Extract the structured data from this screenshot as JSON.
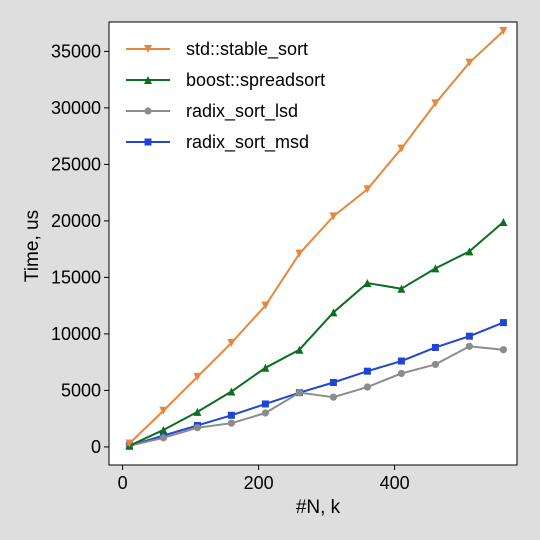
{
  "chart_data": {
    "type": "line",
    "title": "",
    "xlabel": "#N, k",
    "ylabel": "Time, us",
    "xlim": [
      -20,
      580
    ],
    "ylim": [
      -1600,
      37600
    ],
    "xticks": [
      0,
      200,
      400
    ],
    "xtick_labels": [
      "0",
      "200",
      "400"
    ],
    "yticks": [
      0,
      5000,
      10000,
      15000,
      20000,
      25000,
      30000,
      35000
    ],
    "ytick_labels": [
      "0",
      "5000",
      "10000",
      "15000",
      "20000",
      "25000",
      "30000",
      "35000"
    ],
    "grid": false,
    "legend_position": "top-left",
    "x": [
      10,
      60,
      110,
      160,
      210,
      260,
      310,
      360,
      410,
      460,
      510,
      560
    ],
    "series": [
      {
        "name": "std::stable_sort",
        "color": "#e8863a",
        "marker": "triangle-down",
        "values": [
          300,
          3200,
          6200,
          9200,
          12500,
          17100,
          20400,
          22800,
          26400,
          30400,
          34000,
          36800
        ]
      },
      {
        "name": "boost::spreadsort",
        "color": "#0a6f1e",
        "marker": "triangle-up",
        "values": [
          100,
          1500,
          3100,
          4900,
          7000,
          8600,
          11900,
          14500,
          14000,
          15800,
          17300,
          19900
        ]
      },
      {
        "name": "radix_sort_lsd",
        "color": "#8c8c8c",
        "marker": "circle",
        "values": [
          100,
          800,
          1700,
          2100,
          3000,
          4800,
          4400,
          5300,
          6500,
          7300,
          8900,
          8600
        ]
      },
      {
        "name": "radix_sort_msd",
        "color": "#1f45d6",
        "marker": "square",
        "values": [
          100,
          1000,
          1900,
          2800,
          3800,
          4800,
          5700,
          6700,
          7600,
          8800,
          9800,
          11000
        ]
      }
    ]
  }
}
